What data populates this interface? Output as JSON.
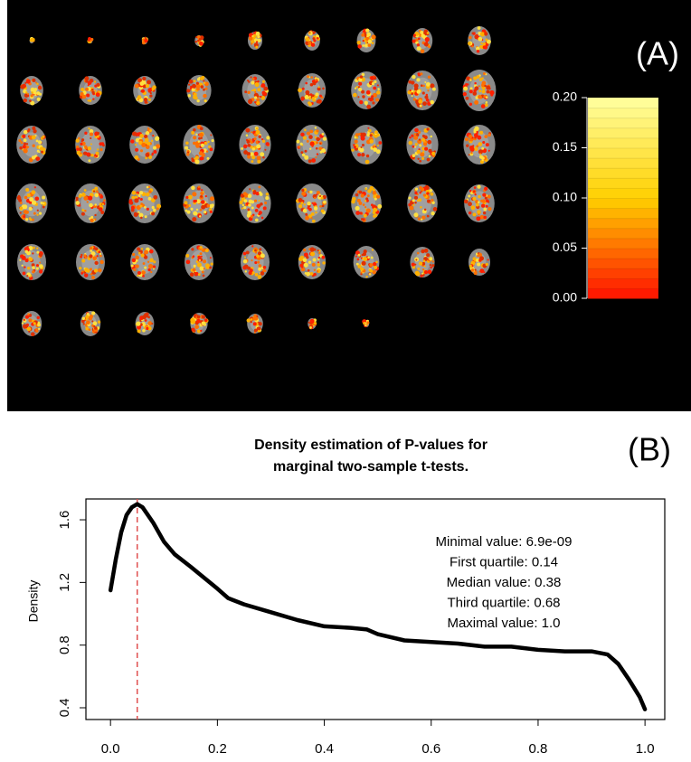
{
  "chart_data": [
    {
      "type": "colorbar",
      "label": "(A)",
      "ylim": [
        0,
        0.2
      ],
      "yticks": [
        {
          "value": 0,
          "label": "0.00"
        },
        {
          "value": 0.05,
          "label": "0.05"
        },
        {
          "value": 0.1,
          "label": "0.10"
        },
        {
          "value": 0.15,
          "label": "0.15"
        },
        {
          "value": 0.2,
          "label": "0.20"
        }
      ],
      "colors": [
        "#ff1000",
        "#ffd000",
        "#ffffa0"
      ]
    },
    {
      "type": "line",
      "label": "(B)",
      "title": [
        "Density estimation of P-values  for",
        "marginal two-sample t-tests."
      ],
      "ylabel": "Density",
      "annotations": [
        "Minimal value: 6.9e-09",
        "First quartile: 0.14",
        "Median value: 0.38",
        "Third quartile: 0.68",
        "Maximal value: 1.0"
      ],
      "x": [
        0,
        0.01,
        0.02,
        0.03,
        0.04,
        0.05,
        0.06,
        0.08,
        0.1,
        0.12,
        0.15,
        0.2,
        0.22,
        0.25,
        0.3,
        0.35,
        0.4,
        0.45,
        0.48,
        0.5,
        0.55,
        0.6,
        0.65,
        0.7,
        0.75,
        0.8,
        0.85,
        0.9,
        0.93,
        0.95,
        0.97,
        0.99,
        1.0
      ],
      "values": [
        1.15,
        1.35,
        1.52,
        1.63,
        1.68,
        1.7,
        1.68,
        1.58,
        1.46,
        1.38,
        1.3,
        1.16,
        1.1,
        1.06,
        1.01,
        0.96,
        0.92,
        0.91,
        0.9,
        0.87,
        0.83,
        0.82,
        0.81,
        0.79,
        0.79,
        0.77,
        0.76,
        0.76,
        0.74,
        0.68,
        0.58,
        0.47,
        0.39
      ],
      "color": "#000000",
      "vline": 0.05,
      "vline_color": "#e05050",
      "xlim": [
        -0.046,
        1.037
      ],
      "ylim": [
        0.325,
        1.733
      ],
      "xticks": [
        {
          "value": 0,
          "label": "0.0"
        },
        0.2,
        0.4,
        0.6,
        0.8,
        {
          "value": 1,
          "label": "1.0"
        }
      ],
      "yticks": [
        0.4,
        0.8,
        1.2,
        1.6
      ]
    }
  ]
}
